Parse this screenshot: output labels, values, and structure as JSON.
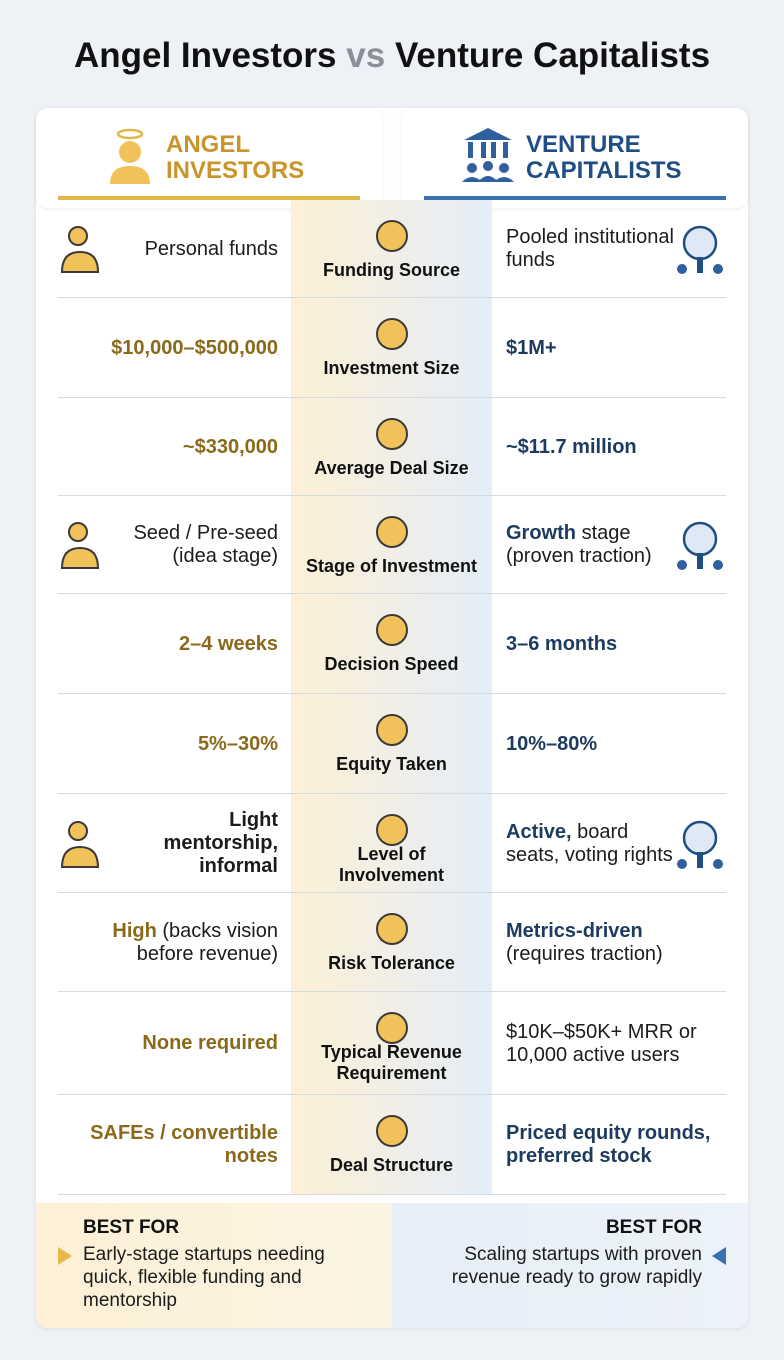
{
  "title": {
    "left": "Angel Investors",
    "middle": "vs",
    "right": "Venture Capitalists"
  },
  "headers": {
    "angel": "ANGEL INVESTORS",
    "vc": "VENTURE CAPITALISTS"
  },
  "rows": [
    {
      "label": "Funding Source",
      "angel": "Personal funds",
      "vc": "Pooled institutional funds"
    },
    {
      "label": "Investment Size",
      "angel": "$10,000–$500,000",
      "vc": "$1M+"
    },
    {
      "label": "Average Deal Size",
      "angel": "~$330,000",
      "vc": "~$11.7 million"
    },
    {
      "label": "Stage of Investment",
      "angel": "Seed / Pre-seed (idea stage)",
      "vc_emph": "Growth",
      "vc": "stage (proven traction)"
    },
    {
      "label": "Decision Speed",
      "angel": "2–4 weeks",
      "vc": "3–6 months"
    },
    {
      "label": "Equity Taken",
      "angel": "5%–30%",
      "vc": "10%–80%"
    },
    {
      "label": "Level of Involvement",
      "angel": "Light mentorship, informal",
      "vc_emph": "Active,",
      "vc": "board seats, voting rights"
    },
    {
      "label": "Risk Tolerance",
      "angel_emph": "High",
      "angel": "(backs vision before revenue)",
      "vc_emph": "Metrics-driven",
      "vc": "(requires traction)"
    },
    {
      "label": "Typical Revenue Requirement",
      "angel": "None required",
      "vc": "$10K–$50K+ MRR or 10,000 active users"
    },
    {
      "label": "Deal Structure",
      "angel": "SAFEs / convertible notes",
      "vc": "Priced equity rounds, preferred stock"
    }
  ],
  "best_for": {
    "angel": {
      "heading": "BEST FOR",
      "text": "Early-stage startups needing quick, flexible funding and mentorship"
    },
    "vc": {
      "heading": "BEST FOR",
      "text": "Scaling startups with proven revenue ready to grow rapidly"
    }
  }
}
